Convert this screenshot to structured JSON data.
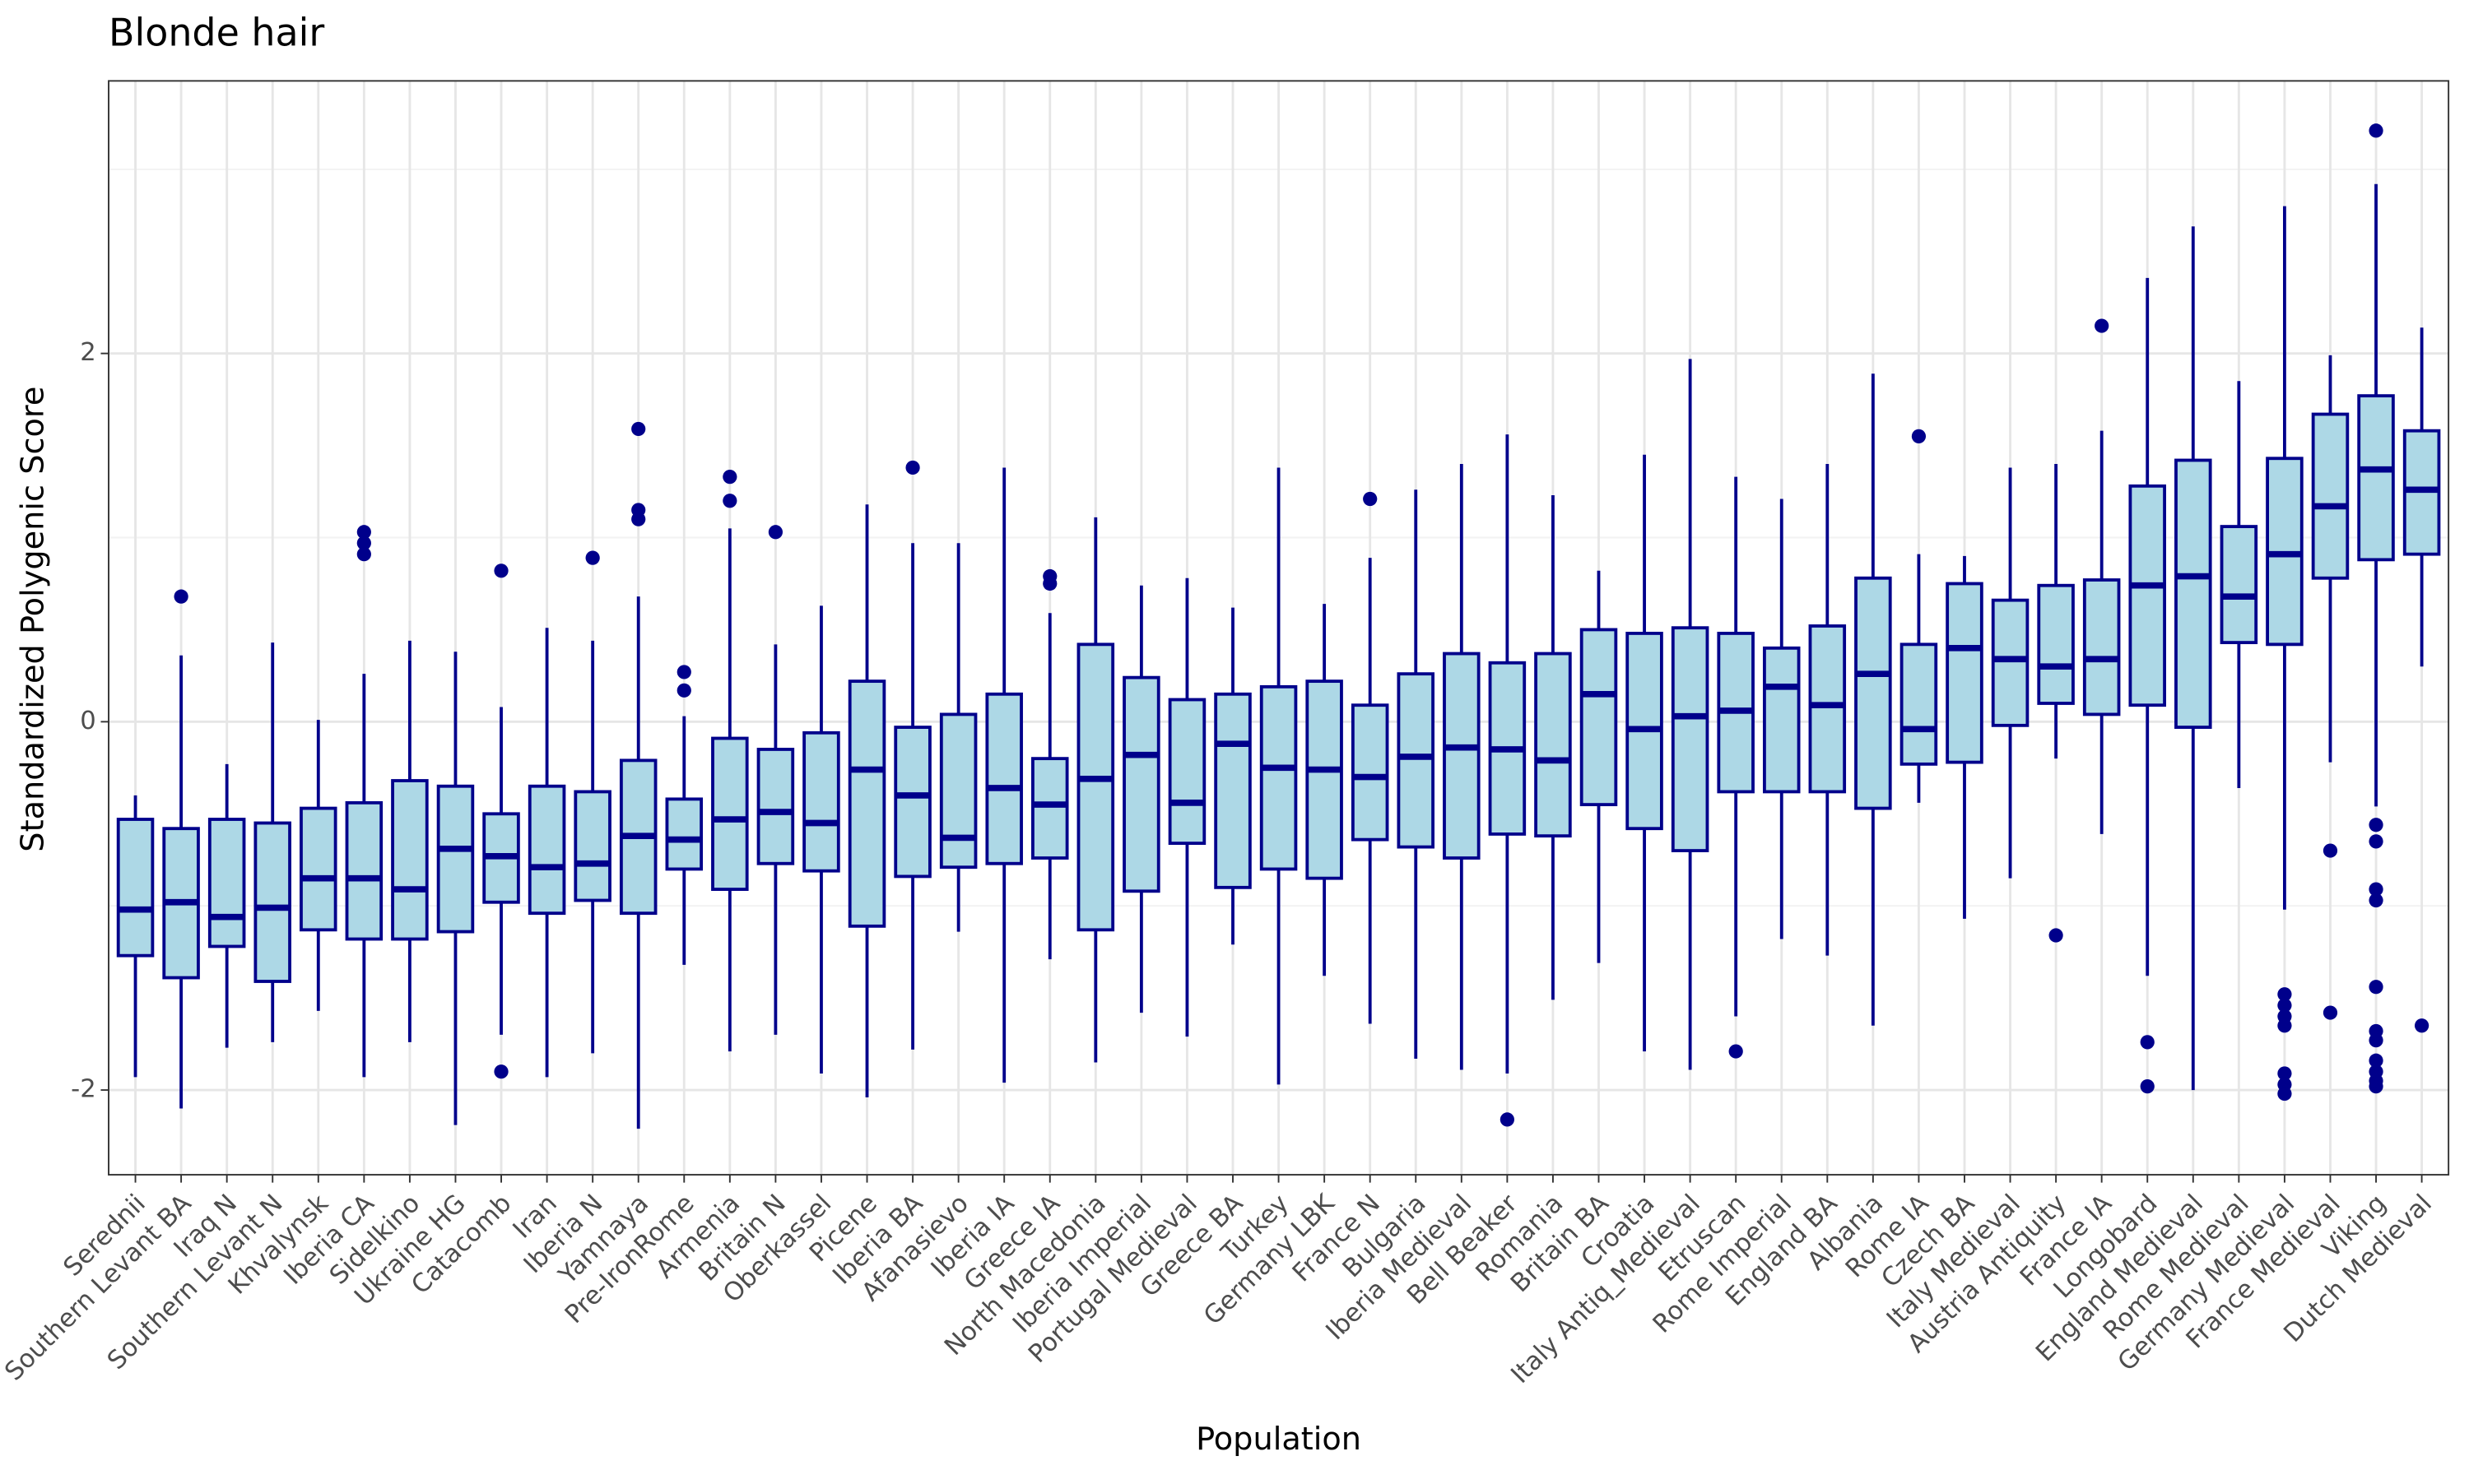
{
  "chart_data": {
    "type": "boxplot",
    "title": "Blonde hair",
    "x_label": "Population",
    "y_label": "Standardized Polygenic Score",
    "categories": [
      "Serednii",
      "Southern Levant BA",
      "Iraq N",
      "Southern Levant N",
      "Khvalynsk",
      "Iberia CA",
      "Sidelkino",
      "Ukraine HG",
      "Catacomb",
      "Iran",
      "Iberia N",
      "Yamnaya",
      "Pre-IronRome",
      "Armenia",
      "Britain N",
      "Oberkassel",
      "Picene",
      "Iberia BA",
      "Afanasievo",
      "Iberia IA",
      "Greece IA",
      "North Macedonia",
      "Iberia Imperial",
      "Portugal Medieval",
      "Greece BA",
      "Turkey",
      "Germany LBK",
      "France N",
      "Bulgaria",
      "Iberia Medieval",
      "Bell Beaker",
      "Romania",
      "Britain BA",
      "Croatia",
      "Italy Antiq_Medieval",
      "Etruscan",
      "Rome Imperial",
      "England BA",
      "Albania",
      "Rome IA",
      "Czech BA",
      "Italy Medieval",
      "Austria Antiquity",
      "France IA",
      "Longobard",
      "England Medieval",
      "Rome Medieval",
      "Germany Medieval",
      "France Medieval",
      "Viking",
      "Dutch Medieval"
    ],
    "whisker_low": [
      -1.93,
      -2.1,
      -1.77,
      -1.74,
      -1.57,
      -1.93,
      -1.74,
      -2.19,
      -1.7,
      -1.93,
      -1.8,
      -2.21,
      -1.32,
      -1.79,
      -1.7,
      -1.91,
      -2.04,
      -1.78,
      -1.14,
      -1.96,
      -1.29,
      -1.85,
      -1.58,
      -1.71,
      -1.21,
      -1.97,
      -1.38,
      -1.64,
      -1.83,
      -1.89,
      -1.91,
      -1.51,
      -1.31,
      -1.79,
      -1.89,
      -1.6,
      -1.18,
      -1.27,
      -1.65,
      -0.44,
      -1.07,
      -0.85,
      -0.2,
      -0.61,
      -1.38,
      -2.0,
      -0.36,
      -1.02,
      -0.22,
      -0.46,
      0.3
    ],
    "q1": [
      -1.27,
      -1.39,
      -1.22,
      -1.41,
      -1.13,
      -1.18,
      -1.18,
      -1.14,
      -0.98,
      -1.04,
      -0.97,
      -1.04,
      -0.8,
      -0.91,
      -0.77,
      -0.81,
      -1.11,
      -0.84,
      -0.79,
      -0.77,
      -0.74,
      -1.13,
      -0.92,
      -0.66,
      -0.9,
      -0.8,
      -0.85,
      -0.64,
      -0.68,
      -0.74,
      -0.61,
      -0.62,
      -0.45,
      -0.58,
      -0.7,
      -0.38,
      -0.38,
      -0.38,
      -0.47,
      -0.23,
      -0.22,
      -0.02,
      0.1,
      0.04,
      0.09,
      -0.03,
      0.43,
      0.42,
      0.78,
      0.88,
      0.91
    ],
    "median": [
      -1.02,
      -0.98,
      -1.06,
      -1.01,
      -0.85,
      -0.85,
      -0.91,
      -0.69,
      -0.73,
      -0.79,
      -0.77,
      -0.62,
      -0.64,
      -0.53,
      -0.49,
      -0.55,
      -0.26,
      -0.4,
      -0.63,
      -0.36,
      -0.45,
      -0.31,
      -0.18,
      -0.44,
      -0.12,
      -0.25,
      -0.26,
      -0.3,
      -0.19,
      -0.14,
      -0.15,
      -0.21,
      0.15,
      -0.04,
      0.03,
      0.06,
      0.19,
      0.09,
      0.26,
      -0.04,
      0.4,
      0.34,
      0.3,
      0.34,
      0.74,
      0.79,
      0.68,
      0.91,
      1.17,
      1.37,
      1.26
    ],
    "q3": [
      -0.53,
      -0.58,
      -0.53,
      -0.55,
      -0.47,
      -0.44,
      -0.32,
      -0.35,
      -0.5,
      -0.35,
      -0.38,
      -0.21,
      -0.42,
      -0.09,
      -0.15,
      -0.06,
      0.22,
      -0.03,
      0.04,
      0.15,
      -0.2,
      0.42,
      0.24,
      0.12,
      0.15,
      0.19,
      0.22,
      0.09,
      0.26,
      0.37,
      0.32,
      0.37,
      0.5,
      0.48,
      0.51,
      0.48,
      0.4,
      0.52,
      0.78,
      0.42,
      0.75,
      0.66,
      0.74,
      0.77,
      1.28,
      1.42,
      1.06,
      1.43,
      1.67,
      1.77,
      1.58
    ],
    "whisker_high": [
      -0.4,
      0.36,
      -0.23,
      0.43,
      0.01,
      0.26,
      0.44,
      0.38,
      0.08,
      0.51,
      0.44,
      0.68,
      0.03,
      1.05,
      0.42,
      0.63,
      1.18,
      0.97,
      0.97,
      1.38,
      0.59,
      1.11,
      0.74,
      0.78,
      0.62,
      1.38,
      0.64,
      0.89,
      1.26,
      1.4,
      1.56,
      1.23,
      0.82,
      1.45,
      1.97,
      1.33,
      1.21,
      1.4,
      1.89,
      0.91,
      0.9,
      1.38,
      1.4,
      1.58,
      2.41,
      2.69,
      1.85,
      2.8,
      1.99,
      2.92,
      2.14
    ],
    "outliers": [
      [],
      [
        0.68
      ],
      [],
      [],
      [],
      [
        1.03,
        0.97,
        0.91
      ],
      [],
      [],
      [
        0.82,
        -1.9
      ],
      [],
      [
        0.89
      ],
      [
        1.59,
        1.15,
        1.1
      ],
      [
        0.27,
        0.17
      ],
      [
        1.33,
        1.2
      ],
      [
        1.03
      ],
      [],
      [],
      [
        1.38
      ],
      [],
      [],
      [
        0.79,
        0.75
      ],
      [],
      [],
      [],
      [],
      [],
      [],
      [
        1.21
      ],
      [],
      [],
      [
        -2.16
      ],
      [],
      [],
      [],
      [],
      [
        -1.79
      ],
      [],
      [],
      [],
      [
        1.55
      ],
      [],
      [],
      [
        -1.16
      ],
      [
        2.15
      ],
      [
        -1.74,
        -1.98
      ],
      [],
      [],
      [
        -1.48,
        -1.54,
        -1.6,
        -1.65,
        -1.91,
        -1.97,
        -2.02
      ],
      [
        -0.7,
        -1.58
      ],
      [
        3.21,
        -0.56,
        -0.65,
        -0.91,
        -0.97,
        -1.44,
        -1.68,
        -1.73,
        -1.84,
        -1.9,
        -1.95,
        -1.98
      ],
      [
        -1.65
      ]
    ],
    "fill_color": "#add8e6",
    "line_color": "#00008b",
    "ylim": [
      -2.46,
      3.48
    ],
    "yticks": [
      -2,
      0,
      2
    ],
    "minor_yticks": [
      -1,
      1,
      3
    ],
    "grid": true
  }
}
